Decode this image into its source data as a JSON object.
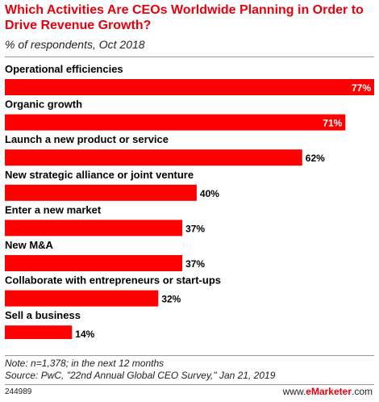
{
  "header": {
    "title": "Which Activities Are CEOs Worldwide Planning in Order to Drive Revenue Growth?",
    "subtitle": "% of respondents, Oct 2018"
  },
  "chart_data": {
    "type": "bar",
    "orientation": "horizontal",
    "categories": [
      "Operational efficiencies",
      "Organic growth",
      "Launch a new product or service",
      "New strategic alliance or joint venture",
      "Enter a new market",
      "New M&A",
      "Collaborate with entrepreneurs or start-ups",
      "Sell a business"
    ],
    "values": [
      77,
      71,
      62,
      40,
      37,
      37,
      32,
      14
    ],
    "value_labels": [
      "77%",
      "71%",
      "62%",
      "40%",
      "37%",
      "37%",
      "32%",
      "14%"
    ],
    "xlim": [
      0,
      77
    ],
    "bar_color": "#ff0000",
    "grid": false
  },
  "notes": {
    "note": "Note: n=1,378; in the next 12 months",
    "source": "Source: PwC, \"22nd Annual Global CEO Survey,\" Jan 21, 2019"
  },
  "footer": {
    "chart_id": "244989",
    "brand_prefix": "www.",
    "brand_name": "eMarketer",
    "brand_suffix": ".com",
    "brand_color": "#e8000c"
  }
}
